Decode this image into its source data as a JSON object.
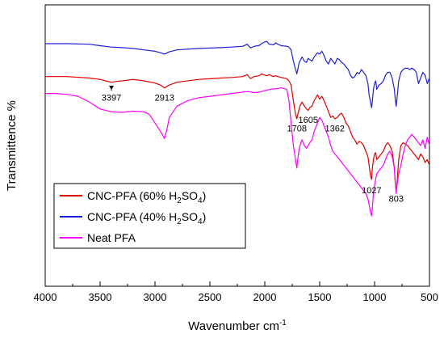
{
  "chart_data": {
    "type": "line",
    "xlabel": "Wavenumber cm",
    "xlabel_sup": "-1",
    "ylabel": "Transmittence %",
    "xlim": [
      4000,
      500
    ],
    "x_reversed": true,
    "grid": false,
    "y_ticks_labeled": false,
    "y_units": "arbitrary transmittance, curves vertically offset; values normalized 0 (bottom) to 1 (top of frame)",
    "xticks": [
      4000,
      3500,
      3000,
      2500,
      2000,
      1500,
      1000,
      500
    ],
    "legend_position": "lower-left",
    "series": [
      {
        "name": "CNC-PFA (40% H2SO4)",
        "legend_main": "CNC-PFA (40% H",
        "legend_sub": "2",
        "legend_mid": "SO",
        "legend_sub2": "4",
        "legend_end": ")",
        "color": "#1f1fd8",
        "x": [
          4000,
          3800,
          3600,
          3500,
          3400,
          3300,
          3200,
          3100,
          3000,
          2950,
          2913,
          2870,
          2800,
          2600,
          2400,
          2300,
          2200,
          2160,
          2130,
          2100,
          2050,
          2030,
          2000,
          1980,
          1960,
          1920,
          1900,
          1880,
          1850,
          1800,
          1780,
          1760,
          1740,
          1720,
          1708,
          1700,
          1690,
          1680,
          1660,
          1640,
          1620,
          1605,
          1590,
          1570,
          1550,
          1520,
          1500,
          1480,
          1460,
          1440,
          1420,
          1400,
          1380,
          1362,
          1340,
          1320,
          1300,
          1280,
          1260,
          1240,
          1220,
          1200,
          1180,
          1160,
          1140,
          1120,
          1100,
          1080,
          1060,
          1050,
          1040,
          1035,
          1027,
          1020,
          1010,
          1000,
          990,
          980,
          960,
          940,
          920,
          900,
          880,
          860,
          840,
          820,
          810,
          803,
          795,
          780,
          760,
          740,
          720,
          700,
          680,
          660,
          640,
          620,
          600,
          580,
          560,
          540,
          520,
          500
        ],
        "y": [
          0.862,
          0.862,
          0.86,
          0.855,
          0.85,
          0.848,
          0.845,
          0.84,
          0.835,
          0.83,
          0.825,
          0.833,
          0.84,
          0.845,
          0.848,
          0.85,
          0.853,
          0.86,
          0.847,
          0.852,
          0.856,
          0.862,
          0.868,
          0.87,
          0.86,
          0.858,
          0.865,
          0.86,
          0.855,
          0.853,
          0.85,
          0.84,
          0.8,
          0.77,
          0.755,
          0.77,
          0.79,
          0.8,
          0.815,
          0.8,
          0.795,
          0.81,
          0.805,
          0.8,
          0.815,
          0.83,
          0.825,
          0.835,
          0.82,
          0.8,
          0.79,
          0.81,
          0.8,
          0.79,
          0.81,
          0.805,
          0.795,
          0.79,
          0.78,
          0.77,
          0.75,
          0.74,
          0.745,
          0.76,
          0.755,
          0.77,
          0.76,
          0.75,
          0.72,
          0.68,
          0.66,
          0.65,
          0.635,
          0.66,
          0.7,
          0.72,
          0.73,
          0.7,
          0.715,
          0.72,
          0.73,
          0.75,
          0.76,
          0.76,
          0.74,
          0.7,
          0.66,
          0.64,
          0.67,
          0.73,
          0.76,
          0.77,
          0.775,
          0.775,
          0.77,
          0.775,
          0.77,
          0.76,
          0.72,
          0.74,
          0.76,
          0.75,
          0.72,
          0.74
        ]
      },
      {
        "name": "CNC-PFA (60% H2SO4)",
        "legend_main": "CNC-PFA (60% H",
        "legend_sub": "2",
        "legend_mid": "SO",
        "legend_sub2": "4",
        "legend_end": ")",
        "color": "#e00000",
        "x": [
          4000,
          3800,
          3600,
          3500,
          3450,
          3397,
          3350,
          3300,
          3200,
          3100,
          3000,
          2950,
          2913,
          2870,
          2800,
          2600,
          2400,
          2300,
          2200,
          2160,
          2130,
          2100,
          2050,
          2030,
          2000,
          1980,
          1960,
          1920,
          1900,
          1880,
          1850,
          1800,
          1780,
          1760,
          1740,
          1720,
          1708,
          1700,
          1690,
          1680,
          1660,
          1640,
          1620,
          1605,
          1590,
          1570,
          1550,
          1520,
          1500,
          1480,
          1460,
          1440,
          1420,
          1400,
          1380,
          1362,
          1340,
          1320,
          1300,
          1280,
          1260,
          1240,
          1220,
          1200,
          1180,
          1160,
          1140,
          1120,
          1100,
          1080,
          1060,
          1050,
          1040,
          1035,
          1027,
          1020,
          1010,
          1000,
          990,
          980,
          960,
          940,
          920,
          900,
          880,
          860,
          840,
          820,
          810,
          803,
          795,
          780,
          760,
          740,
          720,
          700,
          680,
          660,
          640,
          620,
          600,
          580,
          560,
          540,
          520,
          500
        ],
        "y": [
          0.745,
          0.745,
          0.74,
          0.735,
          0.73,
          0.725,
          0.728,
          0.73,
          0.735,
          0.73,
          0.722,
          0.715,
          0.705,
          0.715,
          0.725,
          0.735,
          0.74,
          0.742,
          0.745,
          0.752,
          0.738,
          0.745,
          0.748,
          0.755,
          0.75,
          0.748,
          0.752,
          0.745,
          0.748,
          0.745,
          0.742,
          0.738,
          0.73,
          0.715,
          0.66,
          0.61,
          0.595,
          0.61,
          0.625,
          0.64,
          0.655,
          0.64,
          0.63,
          0.625,
          0.635,
          0.64,
          0.66,
          0.68,
          0.665,
          0.675,
          0.66,
          0.64,
          0.62,
          0.6,
          0.605,
          0.595,
          0.6,
          0.61,
          0.615,
          0.6,
          0.58,
          0.57,
          0.55,
          0.53,
          0.52,
          0.505,
          0.515,
          0.51,
          0.5,
          0.48,
          0.46,
          0.43,
          0.4,
          0.39,
          0.38,
          0.42,
          0.45,
          0.47,
          0.475,
          0.45,
          0.46,
          0.47,
          0.48,
          0.5,
          0.51,
          0.5,
          0.48,
          0.42,
          0.36,
          0.34,
          0.37,
          0.45,
          0.5,
          0.51,
          0.505,
          0.5,
          0.49,
          0.48,
          0.47,
          0.46,
          0.45,
          0.47,
          0.46,
          0.44,
          0.45,
          0.43
        ]
      },
      {
        "name": "Neat PFA",
        "legend_main": "Neat PFA",
        "legend_sub": "",
        "legend_mid": "",
        "legend_sub2": "",
        "legend_end": "",
        "color": "#ff00ff",
        "x": [
          4000,
          3900,
          3800,
          3700,
          3600,
          3500,
          3400,
          3300,
          3200,
          3100,
          3050,
          3000,
          2950,
          2920,
          2913,
          2890,
          2870,
          2800,
          2700,
          2600,
          2500,
          2400,
          2300,
          2200,
          2150,
          2100,
          2050,
          2000,
          1950,
          1900,
          1850,
          1800,
          1780,
          1760,
          1740,
          1720,
          1708,
          1700,
          1690,
          1680,
          1660,
          1640,
          1620,
          1605,
          1590,
          1570,
          1550,
          1520,
          1500,
          1480,
          1460,
          1440,
          1420,
          1400,
          1380,
          1362,
          1340,
          1320,
          1300,
          1280,
          1260,
          1240,
          1220,
          1200,
          1180,
          1160,
          1140,
          1120,
          1100,
          1080,
          1060,
          1050,
          1040,
          1035,
          1027,
          1020,
          1010,
          1000,
          990,
          980,
          960,
          940,
          920,
          900,
          880,
          860,
          840,
          820,
          810,
          803,
          795,
          780,
          760,
          740,
          720,
          700,
          680,
          660,
          640,
          620,
          600,
          580,
          560,
          540,
          520,
          500
        ],
        "y": [
          0.685,
          0.685,
          0.682,
          0.675,
          0.655,
          0.63,
          0.62,
          0.618,
          0.622,
          0.62,
          0.61,
          0.58,
          0.55,
          0.53,
          0.525,
          0.56,
          0.6,
          0.64,
          0.66,
          0.67,
          0.675,
          0.68,
          0.685,
          0.69,
          0.692,
          0.688,
          0.69,
          0.695,
          0.7,
          0.702,
          0.705,
          0.7,
          0.66,
          0.58,
          0.5,
          0.45,
          0.42,
          0.45,
          0.48,
          0.5,
          0.52,
          0.5,
          0.49,
          0.5,
          0.51,
          0.52,
          0.55,
          0.58,
          0.6,
          0.59,
          0.57,
          0.55,
          0.53,
          0.5,
          0.48,
          0.47,
          0.46,
          0.45,
          0.44,
          0.43,
          0.42,
          0.41,
          0.4,
          0.39,
          0.38,
          0.37,
          0.36,
          0.35,
          0.34,
          0.33,
          0.31,
          0.29,
          0.27,
          0.26,
          0.25,
          0.28,
          0.33,
          0.36,
          0.38,
          0.4,
          0.41,
          0.42,
          0.43,
          0.45,
          0.47,
          0.48,
          0.46,
          0.42,
          0.36,
          0.33,
          0.36,
          0.4,
          0.43,
          0.47,
          0.5,
          0.52,
          0.53,
          0.54,
          0.53,
          0.52,
          0.51,
          0.5,
          0.52,
          0.49,
          0.53,
          0.5
        ]
      }
    ],
    "annotations": [
      {
        "text": "3397",
        "x": 3397,
        "y": 0.66,
        "arrow_to": 0.727
      },
      {
        "text": "2913",
        "x": 2913,
        "y": 0.66
      },
      {
        "text": "1708",
        "x": 1708,
        "y": 0.55
      },
      {
        "text": "1605",
        "x": 1605,
        "y": 0.58
      },
      {
        "text": "1362",
        "x": 1362,
        "y": 0.55
      },
      {
        "text": "1027",
        "x": 1027,
        "y": 0.33
      },
      {
        "text": "803",
        "x": 803,
        "y": 0.3
      }
    ]
  }
}
